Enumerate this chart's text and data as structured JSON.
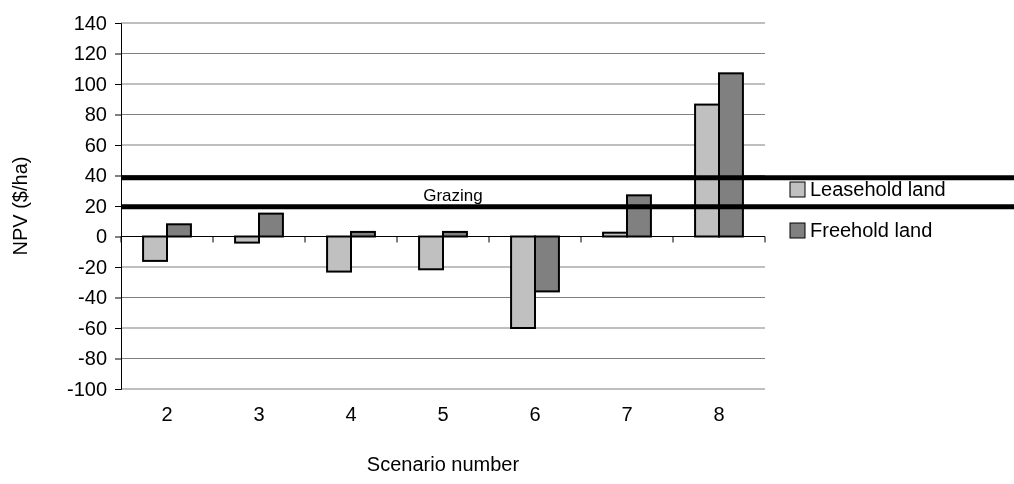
{
  "chart_data": {
    "type": "bar",
    "xlabel": "Scenario number",
    "ylabel": "NPV ($/ha)",
    "categories": [
      "2",
      "3",
      "4",
      "5",
      "6",
      "7",
      "8"
    ],
    "series": [
      {
        "name": "Leasehold land",
        "color": "#c0c0c0",
        "values": [
          -16,
          -4,
          -23,
          -21.5,
          -60,
          2.5,
          86.5
        ]
      },
      {
        "name": "Freehold land",
        "color": "#808080",
        "values": [
          8,
          15,
          3,
          3,
          -36,
          27,
          107
        ]
      }
    ],
    "ylim": [
      -100,
      140
    ],
    "yticks": [
      -100,
      -80,
      -60,
      -40,
      -20,
      0,
      20,
      40,
      60,
      80,
      100,
      120,
      140
    ],
    "grid": "y",
    "legend": "right",
    "ref_lines": [
      {
        "axis": "y",
        "value": 19.5,
        "label": "Grazing",
        "color": "#000000"
      },
      {
        "axis": "y",
        "value": 38.5,
        "label": null,
        "color": "#000000"
      }
    ]
  }
}
